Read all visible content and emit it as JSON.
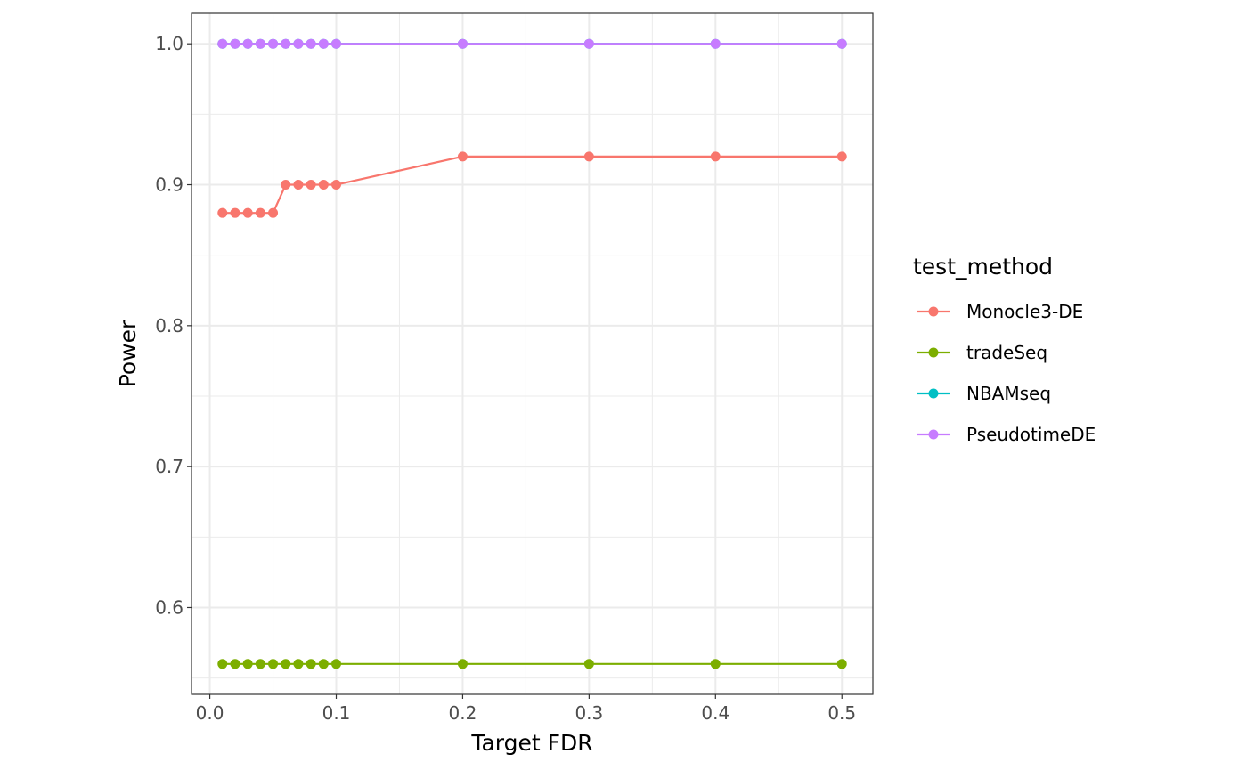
{
  "chart_data": {
    "type": "line",
    "title": "",
    "xlabel": "Target FDR",
    "ylabel": "Power",
    "xlim": [
      -0.0145,
      0.5245
    ],
    "ylim": [
      0.5384,
      1.0216
    ],
    "xticks": [
      0.0,
      0.1,
      0.2,
      0.3,
      0.4,
      0.5
    ],
    "xtick_labels": [
      "0.0",
      "0.1",
      "0.2",
      "0.3",
      "0.4",
      "0.5"
    ],
    "yticks": [
      0.6,
      0.7,
      0.8,
      0.9,
      1.0
    ],
    "ytick_labels": [
      "0.6",
      "0.7",
      "0.8",
      "0.9",
      "1.0"
    ],
    "x_minor": [
      0.05,
      0.15,
      0.25,
      0.35,
      0.45
    ],
    "y_minor": [
      0.55,
      0.65,
      0.75,
      0.85,
      0.95
    ],
    "grid": true,
    "legend_title": "test_method",
    "legend_position": "right",
    "x": [
      0.01,
      0.02,
      0.03,
      0.04,
      0.05,
      0.06,
      0.07,
      0.08,
      0.09,
      0.1,
      0.2,
      0.3,
      0.4,
      0.5
    ],
    "series": [
      {
        "name": "Monocle3-DE",
        "color": "#F8766D",
        "values": [
          0.88,
          0.88,
          0.88,
          0.88,
          0.88,
          0.9,
          0.9,
          0.9,
          0.9,
          0.9,
          0.92,
          0.92,
          0.92,
          0.92
        ]
      },
      {
        "name": "tradeSeq",
        "color": "#7CAE00",
        "values": [
          0.56,
          0.56,
          0.56,
          0.56,
          0.56,
          0.56,
          0.56,
          0.56,
          0.56,
          0.56,
          0.56,
          0.56,
          0.56,
          0.56
        ]
      },
      {
        "name": "NBAMseq",
        "color": "#00BFC4",
        "values": [
          1.0,
          1.0,
          1.0,
          1.0,
          1.0,
          1.0,
          1.0,
          1.0,
          1.0,
          1.0,
          1.0,
          1.0,
          1.0,
          1.0
        ]
      },
      {
        "name": "PseudotimeDE",
        "color": "#C77CFF",
        "values": [
          1.0,
          1.0,
          1.0,
          1.0,
          1.0,
          1.0,
          1.0,
          1.0,
          1.0,
          1.0,
          1.0,
          1.0,
          1.0,
          1.0
        ]
      }
    ]
  }
}
